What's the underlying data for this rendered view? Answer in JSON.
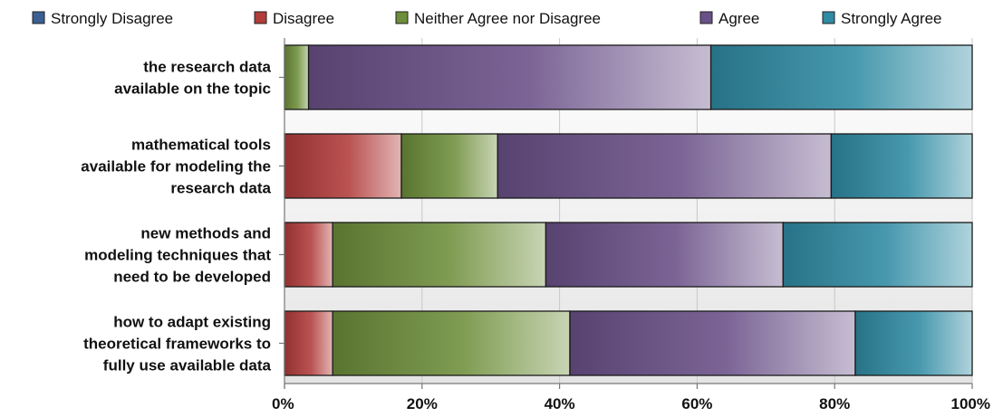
{
  "chart_data": {
    "type": "bar",
    "orientation": "horizontal",
    "stacked": true,
    "normalized": true,
    "title": "",
    "xlabel": "",
    "ylabel": "",
    "xlim": [
      0,
      100
    ],
    "x_ticks": [
      "0%",
      "20%",
      "40%",
      "60%",
      "80%",
      "100%"
    ],
    "x_tick_values": [
      0,
      20,
      40,
      60,
      80,
      100
    ],
    "grid": true,
    "legend_position": "top",
    "categories": [
      [
        "the research data",
        "available on the topic"
      ],
      [
        "mathematical tools",
        "available for modeling the",
        "research data"
      ],
      [
        "new methods and",
        "modeling techniques that",
        "need to be developed"
      ],
      [
        "how to adapt existing",
        "theoretical frameworks to",
        "fully use available data"
      ]
    ],
    "series": [
      {
        "name": "Strongly Disagree",
        "color": "#3a5f94",
        "values": [
          0,
          0,
          0,
          0
        ]
      },
      {
        "name": "Disagree",
        "color": "#b13c3a",
        "values": [
          0,
          17,
          7,
          7
        ]
      },
      {
        "name": "Neither Agree nor Disagree",
        "color": "#6d8e3a",
        "values": [
          3.5,
          14,
          31,
          34.5
        ]
      },
      {
        "name": "Agree",
        "color": "#6a5088",
        "values": [
          58.5,
          48.5,
          34.5,
          41.5
        ]
      },
      {
        "name": "Strongly Agree",
        "color": "#2f8ba3",
        "values": [
          38,
          20.5,
          27.5,
          17
        ]
      }
    ]
  }
}
